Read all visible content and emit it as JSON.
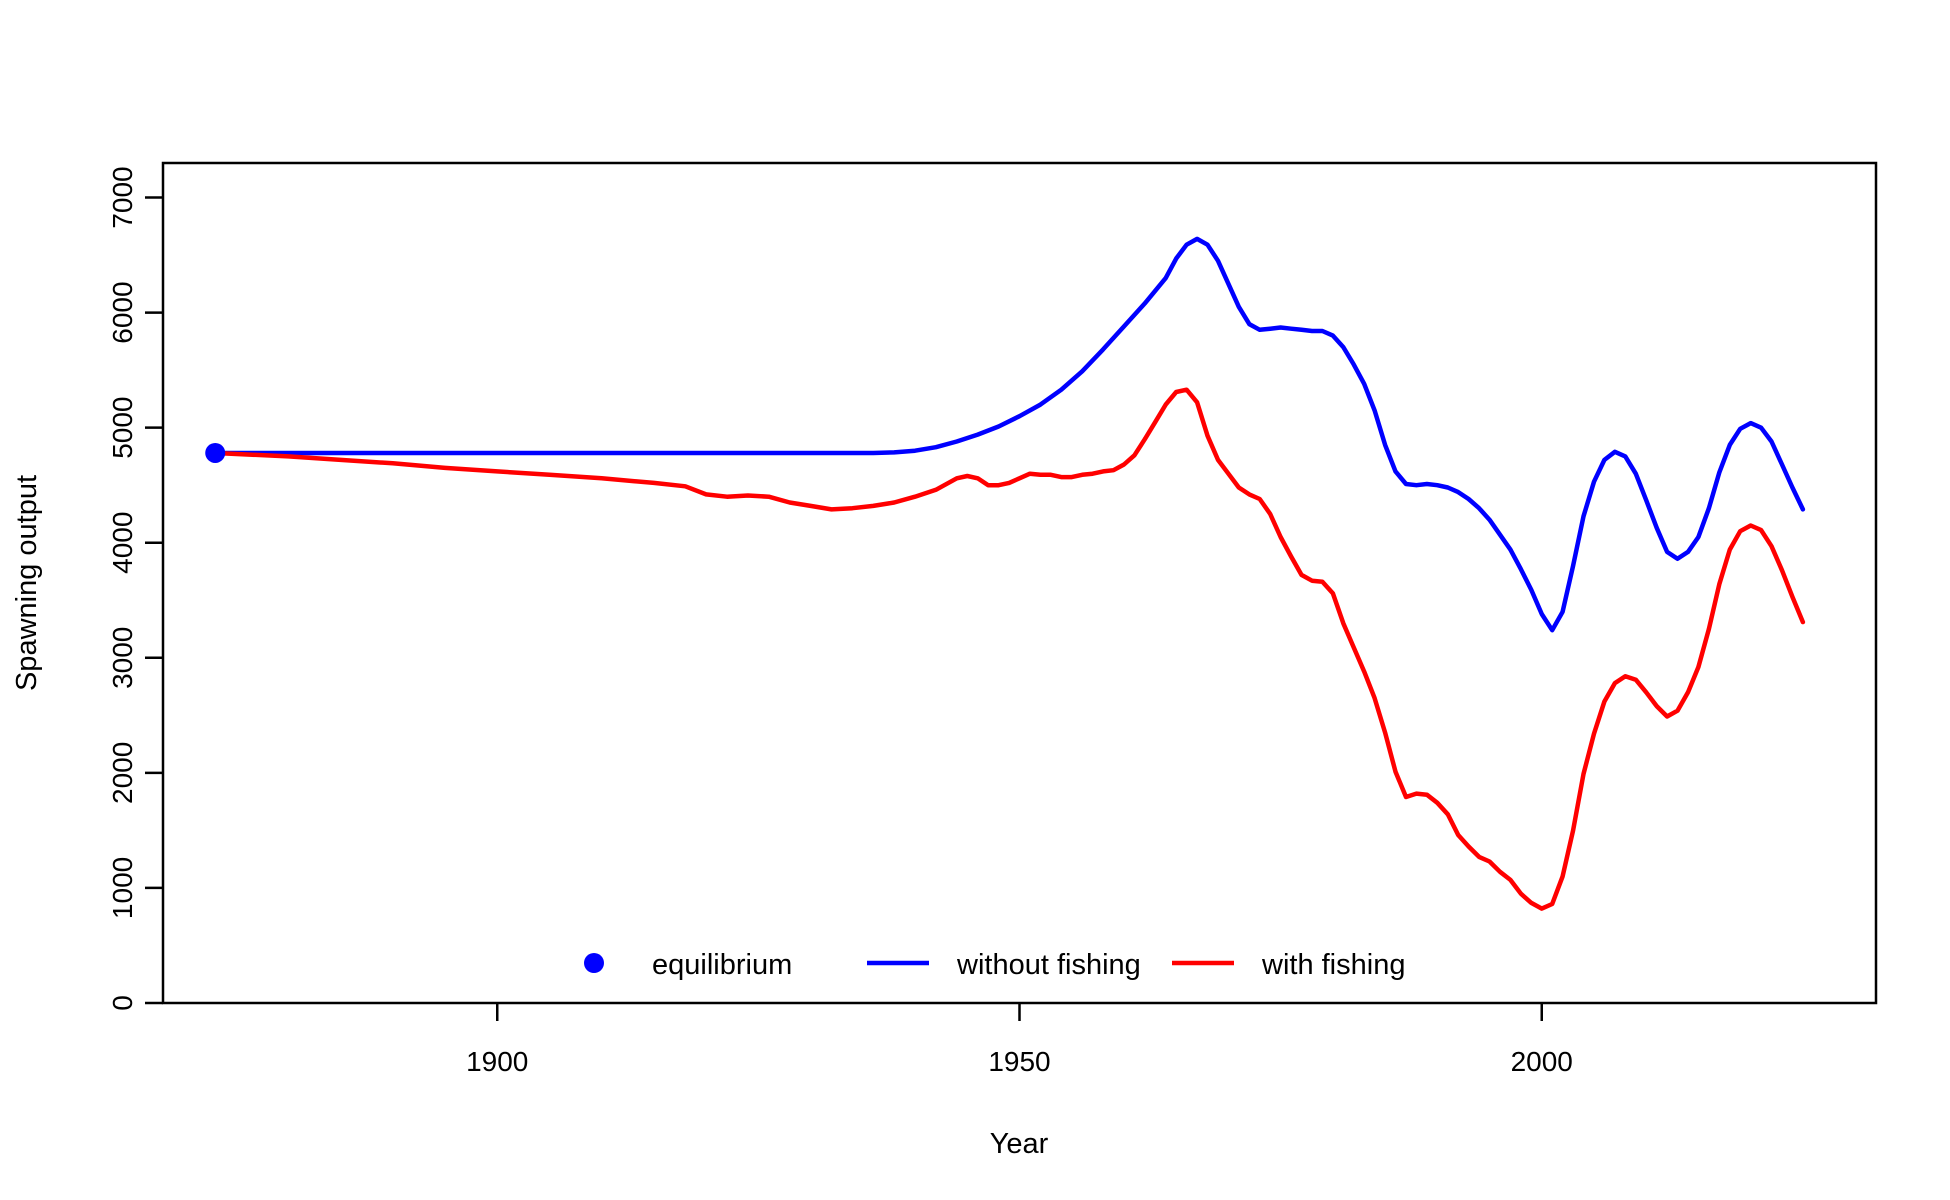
{
  "chart_data": {
    "type": "line",
    "title": "",
    "xlabel": "Year",
    "ylabel": "Spawning output",
    "xlim": [
      1868,
      2032
    ],
    "ylim": [
      0,
      7300
    ],
    "xticks": [
      1900,
      1950,
      2000
    ],
    "yticks": [
      0,
      1000,
      2000,
      3000,
      4000,
      5000,
      6000,
      7000
    ],
    "grid": false,
    "legend": {
      "position": "bottom-center",
      "entries": [
        {
          "label": "equilibrium",
          "kind": "point",
          "color": "#0000FF"
        },
        {
          "label": "without fishing",
          "kind": "line",
          "color": "#0000FF"
        },
        {
          "label": "with fishing",
          "kind": "line",
          "color": "#FF0000"
        }
      ]
    },
    "equilibrium": {
      "x": 1873,
      "y": 4780,
      "color": "#0000FF"
    },
    "series": [
      {
        "name": "without fishing",
        "color": "#0000FF",
        "points": [
          [
            1873,
            4780
          ],
          [
            1900,
            4780
          ],
          [
            1920,
            4780
          ],
          [
            1936,
            4780
          ],
          [
            1938,
            4785
          ],
          [
            1940,
            4800
          ],
          [
            1942,
            4830
          ],
          [
            1944,
            4880
          ],
          [
            1946,
            4940
          ],
          [
            1948,
            5010
          ],
          [
            1950,
            5100
          ],
          [
            1952,
            5200
          ],
          [
            1954,
            5330
          ],
          [
            1956,
            5490
          ],
          [
            1958,
            5680
          ],
          [
            1960,
            5880
          ],
          [
            1962,
            6080
          ],
          [
            1964,
            6300
          ],
          [
            1965,
            6470
          ],
          [
            1966,
            6590
          ],
          [
            1967,
            6640
          ],
          [
            1968,
            6590
          ],
          [
            1969,
            6450
          ],
          [
            1970,
            6250
          ],
          [
            1971,
            6050
          ],
          [
            1972,
            5900
          ],
          [
            1973,
            5850
          ],
          [
            1974,
            5860
          ],
          [
            1975,
            5870
          ],
          [
            1976,
            5860
          ],
          [
            1977,
            5850
          ],
          [
            1978,
            5840
          ],
          [
            1979,
            5840
          ],
          [
            1980,
            5800
          ],
          [
            1981,
            5700
          ],
          [
            1982,
            5550
          ],
          [
            1983,
            5380
          ],
          [
            1984,
            5150
          ],
          [
            1985,
            4850
          ],
          [
            1986,
            4620
          ],
          [
            1987,
            4510
          ],
          [
            1988,
            4500
          ],
          [
            1989,
            4510
          ],
          [
            1990,
            4500
          ],
          [
            1991,
            4480
          ],
          [
            1992,
            4440
          ],
          [
            1993,
            4380
          ],
          [
            1994,
            4300
          ],
          [
            1995,
            4200
          ],
          [
            1996,
            4070
          ],
          [
            1997,
            3940
          ],
          [
            1998,
            3770
          ],
          [
            1999,
            3590
          ],
          [
            2000,
            3380
          ],
          [
            2001,
            3240
          ],
          [
            2002,
            3400
          ],
          [
            2003,
            3800
          ],
          [
            2004,
            4230
          ],
          [
            2005,
            4530
          ],
          [
            2006,
            4720
          ],
          [
            2007,
            4790
          ],
          [
            2008,
            4750
          ],
          [
            2009,
            4600
          ],
          [
            2010,
            4370
          ],
          [
            2011,
            4130
          ],
          [
            2012,
            3920
          ],
          [
            2013,
            3860
          ],
          [
            2014,
            3920
          ],
          [
            2015,
            4050
          ],
          [
            2016,
            4300
          ],
          [
            2017,
            4610
          ],
          [
            2018,
            4850
          ],
          [
            2019,
            4990
          ],
          [
            2020,
            5040
          ],
          [
            2021,
            5000
          ],
          [
            2022,
            4880
          ],
          [
            2023,
            4680
          ],
          [
            2024,
            4480
          ],
          [
            2025,
            4290
          ]
        ]
      },
      {
        "name": "with fishing",
        "color": "#FF0000",
        "points": [
          [
            1873,
            4780
          ],
          [
            1880,
            4750
          ],
          [
            1885,
            4720
          ],
          [
            1890,
            4690
          ],
          [
            1895,
            4650
          ],
          [
            1900,
            4620
          ],
          [
            1905,
            4590
          ],
          [
            1910,
            4560
          ],
          [
            1915,
            4520
          ],
          [
            1918,
            4490
          ],
          [
            1920,
            4420
          ],
          [
            1922,
            4400
          ],
          [
            1924,
            4410
          ],
          [
            1926,
            4400
          ],
          [
            1928,
            4350
          ],
          [
            1930,
            4320
          ],
          [
            1932,
            4290
          ],
          [
            1934,
            4300
          ],
          [
            1936,
            4320
          ],
          [
            1938,
            4350
          ],
          [
            1940,
            4400
          ],
          [
            1942,
            4460
          ],
          [
            1944,
            4560
          ],
          [
            1945,
            4580
          ],
          [
            1946,
            4560
          ],
          [
            1947,
            4500
          ],
          [
            1948,
            4500
          ],
          [
            1949,
            4520
          ],
          [
            1950,
            4560
          ],
          [
            1951,
            4600
          ],
          [
            1952,
            4590
          ],
          [
            1953,
            4590
          ],
          [
            1954,
            4570
          ],
          [
            1955,
            4570
          ],
          [
            1956,
            4590
          ],
          [
            1957,
            4600
          ],
          [
            1958,
            4620
          ],
          [
            1959,
            4630
          ],
          [
            1960,
            4680
          ],
          [
            1961,
            4760
          ],
          [
            1962,
            4900
          ],
          [
            1963,
            5050
          ],
          [
            1964,
            5200
          ],
          [
            1965,
            5310
          ],
          [
            1966,
            5330
          ],
          [
            1967,
            5220
          ],
          [
            1968,
            4930
          ],
          [
            1969,
            4720
          ],
          [
            1970,
            4600
          ],
          [
            1971,
            4480
          ],
          [
            1972,
            4420
          ],
          [
            1973,
            4380
          ],
          [
            1974,
            4250
          ],
          [
            1975,
            4050
          ],
          [
            1976,
            3880
          ],
          [
            1977,
            3720
          ],
          [
            1978,
            3670
          ],
          [
            1979,
            3660
          ],
          [
            1980,
            3560
          ],
          [
            1981,
            3300
          ],
          [
            1982,
            3090
          ],
          [
            1983,
            2880
          ],
          [
            1984,
            2650
          ],
          [
            1985,
            2350
          ],
          [
            1986,
            2010
          ],
          [
            1987,
            1790
          ],
          [
            1988,
            1820
          ],
          [
            1989,
            1810
          ],
          [
            1990,
            1740
          ],
          [
            1991,
            1640
          ],
          [
            1992,
            1460
          ],
          [
            1993,
            1360
          ],
          [
            1994,
            1270
          ],
          [
            1995,
            1230
          ],
          [
            1996,
            1140
          ],
          [
            1997,
            1070
          ],
          [
            1998,
            950
          ],
          [
            1999,
            870
          ],
          [
            2000,
            820
          ],
          [
            2001,
            860
          ],
          [
            2002,
            1100
          ],
          [
            2003,
            1500
          ],
          [
            2004,
            1990
          ],
          [
            2005,
            2340
          ],
          [
            2006,
            2620
          ],
          [
            2007,
            2780
          ],
          [
            2008,
            2840
          ],
          [
            2009,
            2810
          ],
          [
            2010,
            2700
          ],
          [
            2011,
            2580
          ],
          [
            2012,
            2490
          ],
          [
            2013,
            2540
          ],
          [
            2014,
            2700
          ],
          [
            2015,
            2920
          ],
          [
            2016,
            3250
          ],
          [
            2017,
            3640
          ],
          [
            2018,
            3940
          ],
          [
            2019,
            4100
          ],
          [
            2020,
            4150
          ],
          [
            2021,
            4110
          ],
          [
            2022,
            3970
          ],
          [
            2023,
            3760
          ],
          [
            2024,
            3530
          ],
          [
            2025,
            3310
          ]
        ]
      }
    ]
  }
}
